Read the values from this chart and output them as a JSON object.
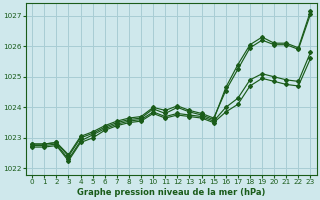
{
  "title": "Graphe pression niveau de la mer (hPa)",
  "background_color": "#cfe8ec",
  "grid_color": "#a8cdd4",
  "line_color": "#1a5c1a",
  "ylim": [
    1021.8,
    1027.4
  ],
  "xlim": [
    -0.5,
    23.5
  ],
  "yticks": [
    1022,
    1023,
    1024,
    1025,
    1026,
    1027
  ],
  "xticks": [
    0,
    1,
    2,
    3,
    4,
    5,
    6,
    7,
    8,
    9,
    10,
    11,
    12,
    13,
    14,
    15,
    16,
    17,
    18,
    19,
    20,
    21,
    22,
    23
  ],
  "series": [
    [
      1022.8,
      1022.8,
      1022.85,
      1022.4,
      1023.0,
      1023.15,
      1023.35,
      1023.5,
      1023.6,
      1023.65,
      1023.95,
      1023.8,
      1024.0,
      1023.85,
      1023.75,
      1023.6,
      1024.65,
      1025.4,
      1026.05,
      1026.3,
      1026.1,
      1026.1,
      1025.95,
      1027.15
    ],
    [
      1022.8,
      1022.8,
      1022.85,
      1022.45,
      1023.05,
      1023.2,
      1023.4,
      1023.55,
      1023.65,
      1023.7,
      1024.0,
      1023.9,
      1024.05,
      1023.9,
      1023.8,
      1023.65,
      1024.55,
      1025.25,
      1025.95,
      1026.2,
      1026.05,
      1026.05,
      1025.9,
      1027.05
    ],
    [
      1022.75,
      1022.75,
      1022.8,
      1022.3,
      1022.9,
      1023.1,
      1023.3,
      1023.45,
      1023.55,
      1023.6,
      1023.85,
      1023.7,
      1023.8,
      1023.75,
      1023.7,
      1023.55,
      1024.0,
      1024.3,
      1024.9,
      1025.1,
      1025.0,
      1024.9,
      1024.85,
      1025.8
    ],
    [
      1022.7,
      1022.7,
      1022.75,
      1022.25,
      1022.85,
      1023.0,
      1023.25,
      1023.4,
      1023.5,
      1023.55,
      1023.8,
      1023.65,
      1023.75,
      1023.7,
      1023.65,
      1023.5,
      1023.85,
      1024.1,
      1024.7,
      1024.95,
      1024.85,
      1024.75,
      1024.7,
      1025.6
    ]
  ]
}
